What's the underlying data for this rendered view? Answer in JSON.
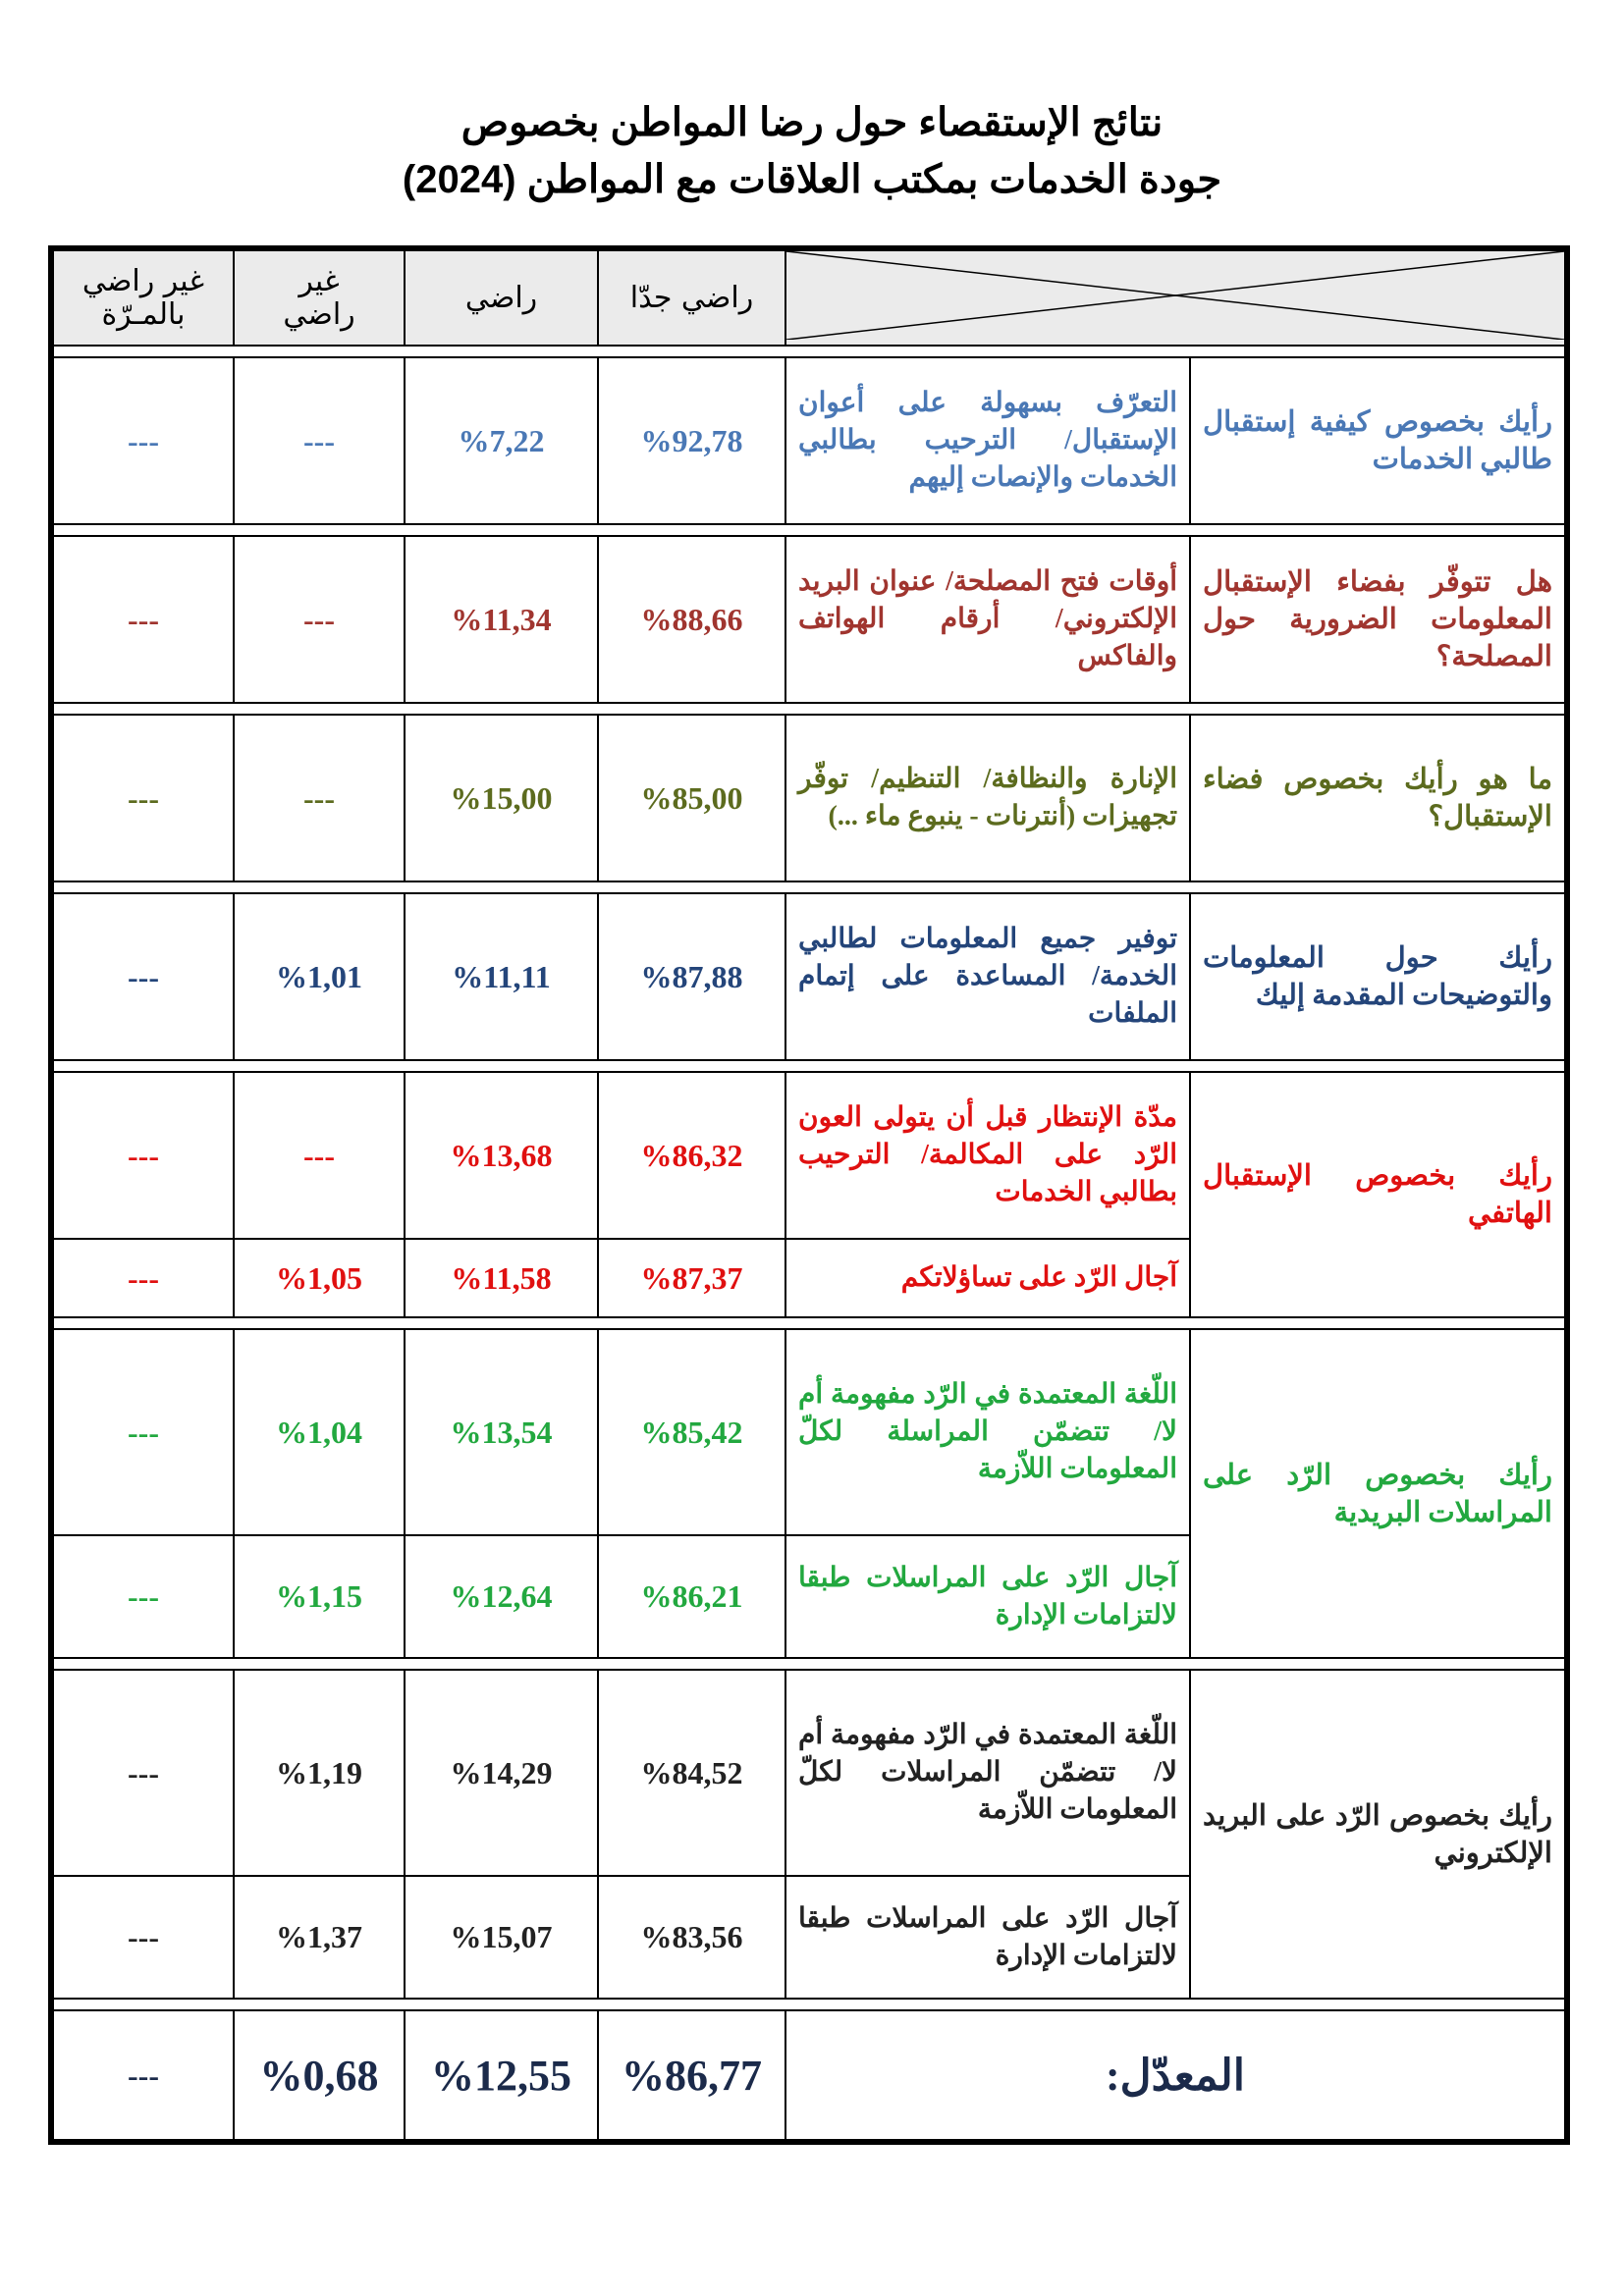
{
  "title": {
    "line1": "نتائج الإستقصاء حول رضا المواطن بخصوص",
    "line2": "جودة الخدمات بمكتب العلاقات مع المواطن (2024)"
  },
  "header": {
    "very_satisfied": "راضي جدّا",
    "satisfied": "راضي",
    "not_satisfied_l1": "غير",
    "not_satisfied_l2": "راضي",
    "not_at_all_l1": "غير راضي",
    "not_at_all_l2": "بالمـرّة"
  },
  "colors": {
    "blue": "#4a78b5",
    "brown": "#a0352f",
    "olive": "#5c6b1e",
    "navy": "#24457a",
    "red": "#e01010",
    "green": "#22a83f",
    "dark": "#222222"
  },
  "sections": [
    {
      "question": "رأيك بخصوص كيفية إستقبال طالبي الخدمات",
      "rows": [
        {
          "item": "التعرّف بسهولة على أعوان الإستقبال/ الترحيب بطالبي الخدمات والإنصات إليهم",
          "very": "%92,78",
          "sat": "%7,22",
          "not": "---",
          "none": "---"
        }
      ]
    },
    {
      "question": "هل تتوفّر بفضاء الإستقبال المعلومات الضرورية حول المصلحة؟",
      "rows": [
        {
          "item": "أوقات فتح المصلحة/ عنوان البريد الإلكتروني/ أرقام الهواتف والفاكس",
          "very": "%88,66",
          "sat": "%11,34",
          "not": "---",
          "none": "---"
        }
      ]
    },
    {
      "question": "ما هو رأيك بخصوص فضاء الإستقبال؟",
      "rows": [
        {
          "item": "الإنارة والنظافة/ التنظيم/ توفّر تجهيزات (أنترنات - ينبوع ماء ...)",
          "very": "%85,00",
          "sat": "%15,00",
          "not": "---",
          "none": "---"
        }
      ]
    },
    {
      "question": "رأيك حول المعلومات والتوضيحات المقدمة إليك",
      "rows": [
        {
          "item": "توفير جميع المعلومات لطالبي الخدمة/ المساعدة على إتمام الملفات",
          "very": "%87,88",
          "sat": "%11,11",
          "not": "%1,01",
          "none": "---"
        }
      ]
    },
    {
      "question": "رأيك بخصوص الإستقبال الهاتفي",
      "rows": [
        {
          "item": "مدّة الإنتظار قبل أن يتولى العون الرّد على المكالمة/ الترحيب بطالبي الخدمات",
          "very": "%86,32",
          "sat": "%13,68",
          "not": "---",
          "none": "---"
        },
        {
          "item": "آجال الرّد على تساؤلاتكم",
          "very": "%87,37",
          "sat": "%11,58",
          "not": "%1,05",
          "none": "---"
        }
      ]
    },
    {
      "question": "رأيك بخصوص الرّد على المراسلات البريدية",
      "rows": [
        {
          "item": "اللّغة المعتمدة في الرّد مفهومة أم لا/ تتضمّن المراسلة لكلّ المعلومات اللاّزمة",
          "very": "%85,42",
          "sat": "%13,54",
          "not": "%1,04",
          "none": "---"
        },
        {
          "item": "آجال الرّد على المراسلات طبقا لالتزامات الإدارة",
          "very": "%86,21",
          "sat": "%12,64",
          "not": "%1,15",
          "none": "---"
        }
      ]
    },
    {
      "question": "رأيك بخصوص الرّد على البريد الإلكتروني",
      "rows": [
        {
          "item": "اللّغة المعتمدة في الرّد مفهومة أم لا/ تتضمّن المراسلات لكلّ المعلومات اللاّزمة",
          "very": "%84,52",
          "sat": "%14,29",
          "not": "%1,19",
          "none": "---"
        },
        {
          "item": "آجال الرّد على المراسلات طبقا لالتزامات الإدارة",
          "very": "%83,56",
          "sat": "%15,07",
          "not": "%1,37",
          "none": "---"
        }
      ]
    }
  ],
  "average": {
    "label": "المعدّل:",
    "very": "%86,77",
    "sat": "%12,55",
    "not": "%0,68",
    "none": "---"
  }
}
